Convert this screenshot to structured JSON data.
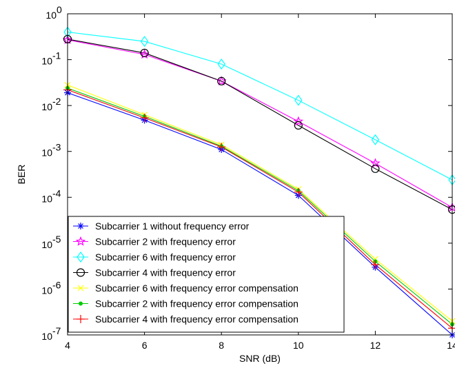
{
  "chart_data": {
    "type": "line",
    "title": "",
    "xlabel": "SNR (dB)",
    "ylabel": "BER",
    "xlim": [
      4,
      14
    ],
    "ylim": [
      1e-07,
      1
    ],
    "yscale": "log",
    "grid": false,
    "legend_position": "bottom-left",
    "x_ticks": [
      "4",
      "6",
      "8",
      "10",
      "12",
      "14"
    ],
    "y_ticks": [
      {
        "base": "10",
        "exp": "-7"
      },
      {
        "base": "10",
        "exp": "-6"
      },
      {
        "base": "10",
        "exp": "-5"
      },
      {
        "base": "10",
        "exp": "-4"
      },
      {
        "base": "10",
        "exp": "-3"
      },
      {
        "base": "10",
        "exp": "-2"
      },
      {
        "base": "10",
        "exp": "-1"
      },
      {
        "base": "10",
        "exp": "0"
      }
    ],
    "x": [
      4,
      6,
      8,
      10,
      12,
      14
    ],
    "series": [
      {
        "name": "Subcarrier 1 without frequency error",
        "color": "#0000ff",
        "marker": "asterisk",
        "values": [
          0.019,
          0.0048,
          0.0011,
          0.00011,
          3e-06,
          1e-07
        ]
      },
      {
        "name": "Subcarrier 2 with frequency error",
        "color": "#ff00ff",
        "marker": "star",
        "values": [
          0.27,
          0.13,
          0.034,
          0.0045,
          0.00055,
          6e-05
        ]
      },
      {
        "name": "Subcarrier 6 with frequency error",
        "color": "#00ffff",
        "marker": "diamond",
        "values": [
          0.4,
          0.25,
          0.08,
          0.013,
          0.0018,
          0.00024
        ]
      },
      {
        "name": "Subcarrier 4 with frequency error",
        "color": "#000000",
        "marker": "circle",
        "values": [
          0.28,
          0.14,
          0.034,
          0.0037,
          0.00042,
          5.4e-05
        ]
      },
      {
        "name": "Subcarrier 6 with frequency error compensation",
        "color": "#ffff00",
        "marker": "x",
        "values": [
          0.028,
          0.0063,
          0.0014,
          0.00015,
          4.5e-06,
          2e-07
        ]
      },
      {
        "name": "Subcarrier 2 with frequency error compensation",
        "color": "#00cc00",
        "marker": "dot",
        "values": [
          0.024,
          0.0058,
          0.0013,
          0.00014,
          4e-06,
          1.7e-07
        ]
      },
      {
        "name": "Subcarrier 4 with frequency error compensation",
        "color": "#ff0000",
        "marker": "plus",
        "values": [
          0.022,
          0.0054,
          0.00125,
          0.00013,
          3.4e-06,
          1.4e-07
        ]
      }
    ]
  }
}
